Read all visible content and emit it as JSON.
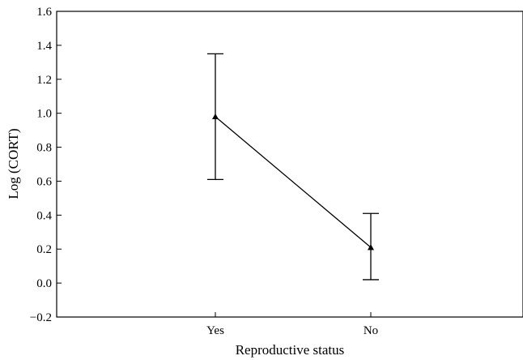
{
  "chart_data": {
    "type": "line",
    "title": "",
    "xlabel": "Reproductive status",
    "ylabel": "Log (CORT)",
    "categories": [
      "Yes",
      "No"
    ],
    "series": [
      {
        "values": [
          0.98,
          0.21
        ],
        "error_low": [
          0.61,
          0.02
        ],
        "error_high": [
          1.35,
          0.41
        ]
      }
    ],
    "ylim": [
      -0.2,
      1.6
    ],
    "yticks": [
      "-0.2",
      "0.0",
      "0.2",
      "0.4",
      "0.6",
      "0.8",
      "1.0",
      "1.2",
      "1.4",
      "1.6"
    ],
    "grid": false,
    "marker": "triangle",
    "colors": {
      "line": "#000000",
      "axes": "#000000"
    }
  }
}
